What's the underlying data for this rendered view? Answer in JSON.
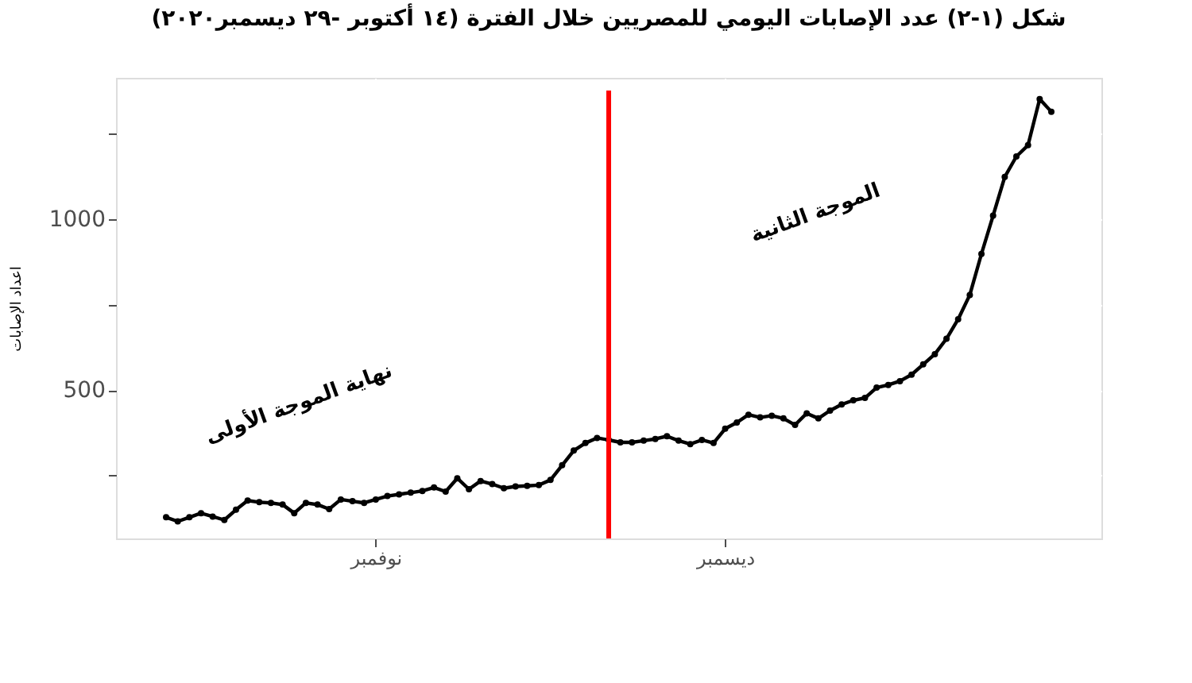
{
  "chart_data": {
    "type": "line",
    "title": "شكل (١-٢) عدد الإصابات اليومي للمصريين خلال الفترة (١٤ أكتوبر -٢٩ ديسمبر٢٠٢٠)",
    "ylabel": "اعداد الإصابات",
    "categories": [
      null,
      null,
      null,
      null,
      null,
      null,
      null,
      null,
      null,
      null,
      null,
      null,
      null,
      null,
      null,
      null,
      null,
      null,
      "نوفمبر",
      null,
      null,
      null,
      null,
      null,
      null,
      null,
      null,
      null,
      null,
      null,
      null,
      null,
      null,
      null,
      null,
      null,
      null,
      null,
      null,
      null,
      null,
      null,
      null,
      null,
      null,
      null,
      null,
      null,
      "ديسمبر",
      null,
      null,
      null,
      null,
      null,
      null,
      null,
      null,
      null,
      null,
      null,
      null,
      null,
      null,
      null,
      null,
      null,
      null,
      null,
      null,
      null,
      null,
      null,
      null,
      null,
      null,
      null,
      null
    ],
    "series": [
      {
        "color": "#000000",
        "values": [
          128,
          116,
          128,
          140,
          130,
          120,
          150,
          177,
          172,
          170,
          165,
          140,
          170,
          165,
          152,
          180,
          175,
          170,
          180,
          190,
          195,
          200,
          205,
          215,
          203,
          242,
          210,
          234,
          225,
          213,
          218,
          220,
          222,
          237,
          280,
          323,
          345,
          360,
          354,
          347,
          347,
          352,
          357,
          365,
          352,
          342,
          354,
          345,
          387,
          405,
          428,
          420,
          425,
          417,
          398,
          432,
          417,
          440,
          458,
          470,
          477,
          507,
          515,
          526,
          545,
          575,
          605,
          650,
          707,
          778,
          898,
          1010,
          1123,
          1183,
          1216,
          1351,
          1314
        ]
      }
    ],
    "ylim": [
      66,
      1413
    ],
    "yticks": [
      {
        "value": 250,
        "label": null
      },
      500,
      {
        "value": 750,
        "label": null
      },
      1000,
      {
        "value": 1250,
        "label": null
      }
    ],
    "annotations": [
      "نهاية الموجة الأولى",
      "الموجة الثانية"
    ],
    "grid": true,
    "marker": "circle",
    "line_style": "solid"
  }
}
